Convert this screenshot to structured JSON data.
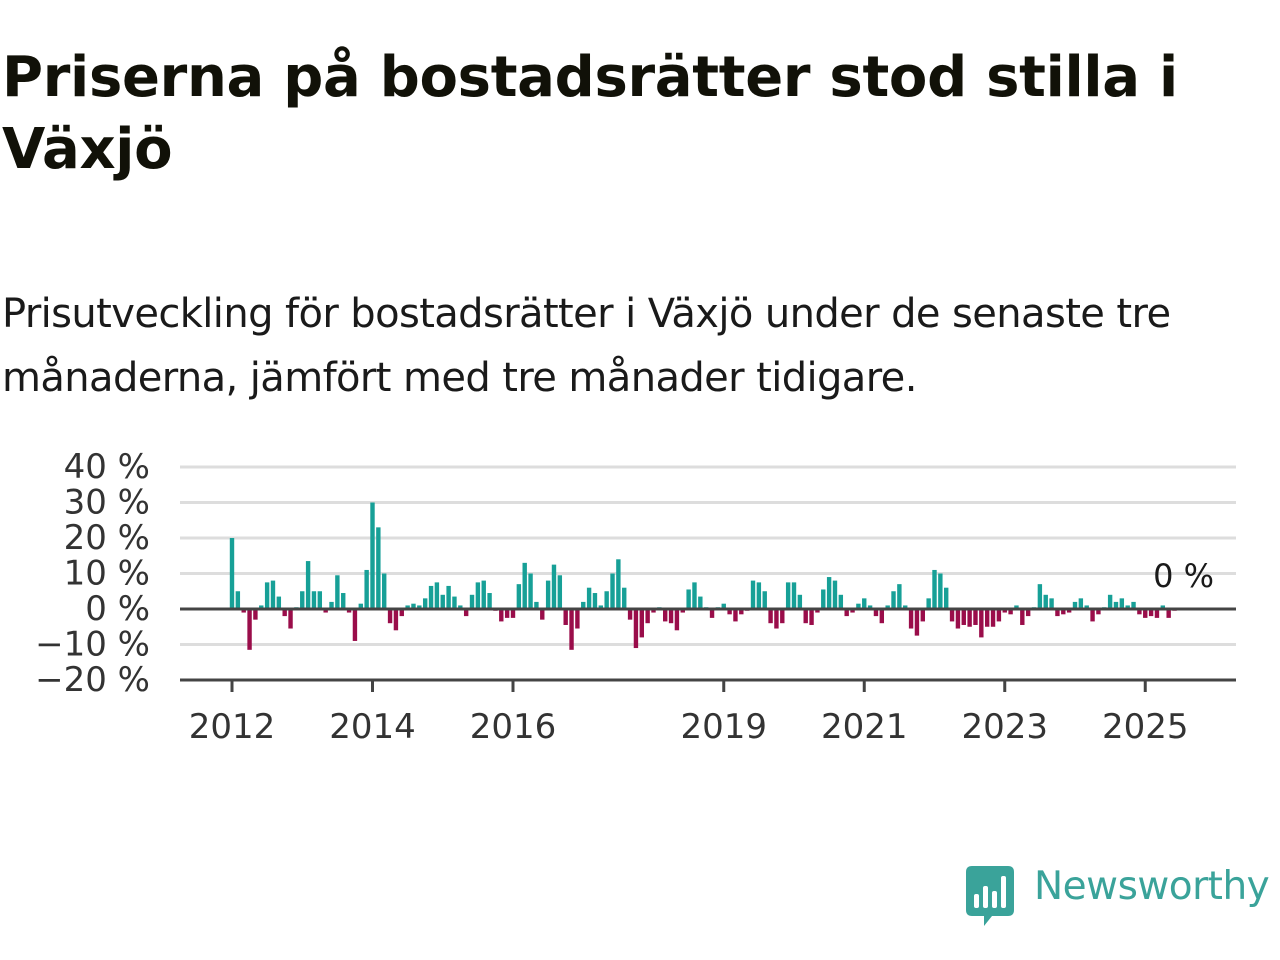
{
  "title": "Priserna på bostadsrätter stod stilla i Växjö",
  "subtitle": "Prisutveckling för bostadsrätter i Växjö under de senaste tre månaderna, jämfört med tre månader tidigare.",
  "logo_text": "Newsworthy",
  "colors": {
    "positive": "#17a097",
    "negative": "#9a0d4a",
    "grid": "#dddddd",
    "axis": "#444444",
    "logo": "#3aa39a"
  },
  "chart_data": {
    "type": "bar",
    "title": "Priserna på bostadsrätter stod stilla i Växjö",
    "ylabel": "",
    "ylim": [
      -20,
      40
    ],
    "yticks": [
      40,
      30,
      20,
      10,
      0,
      -10,
      -20
    ],
    "ytick_labels": [
      "40 %",
      "30 %",
      "20 %",
      "10 %",
      "0 %",
      "−10 %",
      "−20 %"
    ],
    "xticks": [
      {
        "label": "2012",
        "x": 2012
      },
      {
        "label": "2014",
        "x": 2014
      },
      {
        "label": "2016",
        "x": 2016
      },
      {
        "label": "2019",
        "x": 2019
      },
      {
        "label": "2021",
        "x": 2021
      },
      {
        "label": "2023",
        "x": 2023
      },
      {
        "label": "2025",
        "x": 2025
      }
    ],
    "grid": true,
    "x_start": "2012-01",
    "last_value_label": "0 %",
    "values": [
      20,
      5,
      -1,
      -11.5,
      -3,
      1,
      7.5,
      8,
      3.5,
      -2,
      -5.5,
      0.5,
      5,
      13.5,
      5,
      5,
      -1,
      2,
      9.5,
      4.5,
      -1,
      -9,
      1.5,
      11,
      30,
      23,
      10,
      -4,
      -6,
      -2,
      1,
      1.5,
      1,
      3,
      6.5,
      7.5,
      4,
      6.5,
      3.5,
      1,
      -2,
      4,
      7.5,
      8,
      4.5,
      -0.5,
      -3.5,
      -2.5,
      -2.5,
      7,
      13,
      10,
      2,
      -3,
      8,
      12.5,
      9.5,
      -4.5,
      -11.5,
      -5.5,
      2,
      6,
      4.5,
      1,
      5,
      10,
      14,
      6,
      -3,
      -11,
      -8,
      -4,
      -1,
      0.5,
      -3.5,
      -4,
      -6,
      -1,
      5.5,
      7.5,
      3.5,
      0.5,
      -2.5,
      0.5,
      1.5,
      -1.5,
      -3.5,
      -1.5,
      -0.5,
      8,
      7.5,
      5,
      -4,
      -5.5,
      -4,
      7.5,
      7.5,
      4,
      -4,
      -4.5,
      -1,
      5.5,
      9,
      8,
      4,
      -2,
      -1,
      1.5,
      3,
      1,
      -2,
      -4,
      1,
      5,
      7,
      1,
      -5.5,
      -7.5,
      -3.5,
      3,
      11,
      10,
      6,
      -3.5,
      -5.5,
      -4.5,
      -5,
      -4.5,
      -8,
      -5,
      -5,
      -3.5,
      -1,
      -1.5,
      1,
      -4.5,
      -2,
      0.5,
      7,
      4,
      3,
      -2,
      -1.5,
      -1,
      2,
      3,
      1,
      -3.5,
      -1.5,
      0.5,
      4,
      2,
      3,
      1,
      2,
      -1.5,
      -2.5,
      -2,
      -2.5,
      1,
      -2.5,
      -0.5,
      0
    ]
  }
}
